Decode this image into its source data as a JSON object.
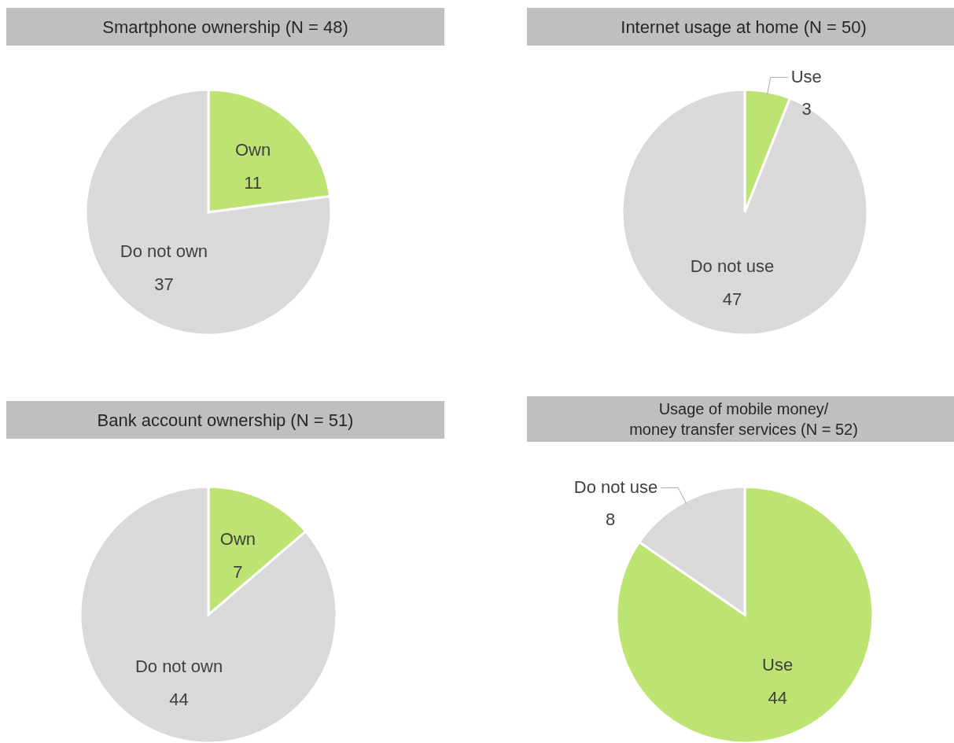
{
  "chart_data": [
    {
      "type": "pie",
      "title": "Smartphone ownership (N = 48)",
      "categories": [
        "Own",
        "Do not own"
      ],
      "values": [
        11,
        37
      ],
      "colors": [
        "#bde472",
        "#d9d9d9"
      ],
      "data_labels": true
    },
    {
      "type": "pie",
      "title": "Internet usage at home (N = 50)",
      "categories": [
        "Use",
        "Do not use"
      ],
      "values": [
        3,
        47
      ],
      "colors": [
        "#bde472",
        "#d9d9d9"
      ],
      "data_labels": true
    },
    {
      "type": "pie",
      "title": "Bank account ownership (N = 51)",
      "categories": [
        "Own",
        "Do not own"
      ],
      "values": [
        7,
        44
      ],
      "colors": [
        "#bde472",
        "#d9d9d9"
      ],
      "data_labels": true
    },
    {
      "type": "pie",
      "title": "Usage of mobile money/\nmoney transfer services (N = 52)",
      "categories": [
        "Use",
        "Do not use"
      ],
      "values": [
        44,
        8
      ],
      "colors": [
        "#bde472",
        "#d9d9d9"
      ],
      "data_labels": true
    }
  ]
}
